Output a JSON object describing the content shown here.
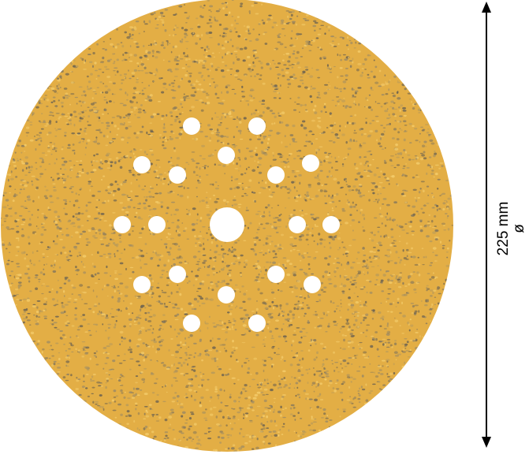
{
  "product": {
    "name_icon": "sanding-disc",
    "disc_color": "#E3AE45",
    "grit_color": "#8A7A5A",
    "highlight_color": "#F3CB6A"
  },
  "dimension": {
    "value": "225 mm",
    "symbol": "ø"
  }
}
